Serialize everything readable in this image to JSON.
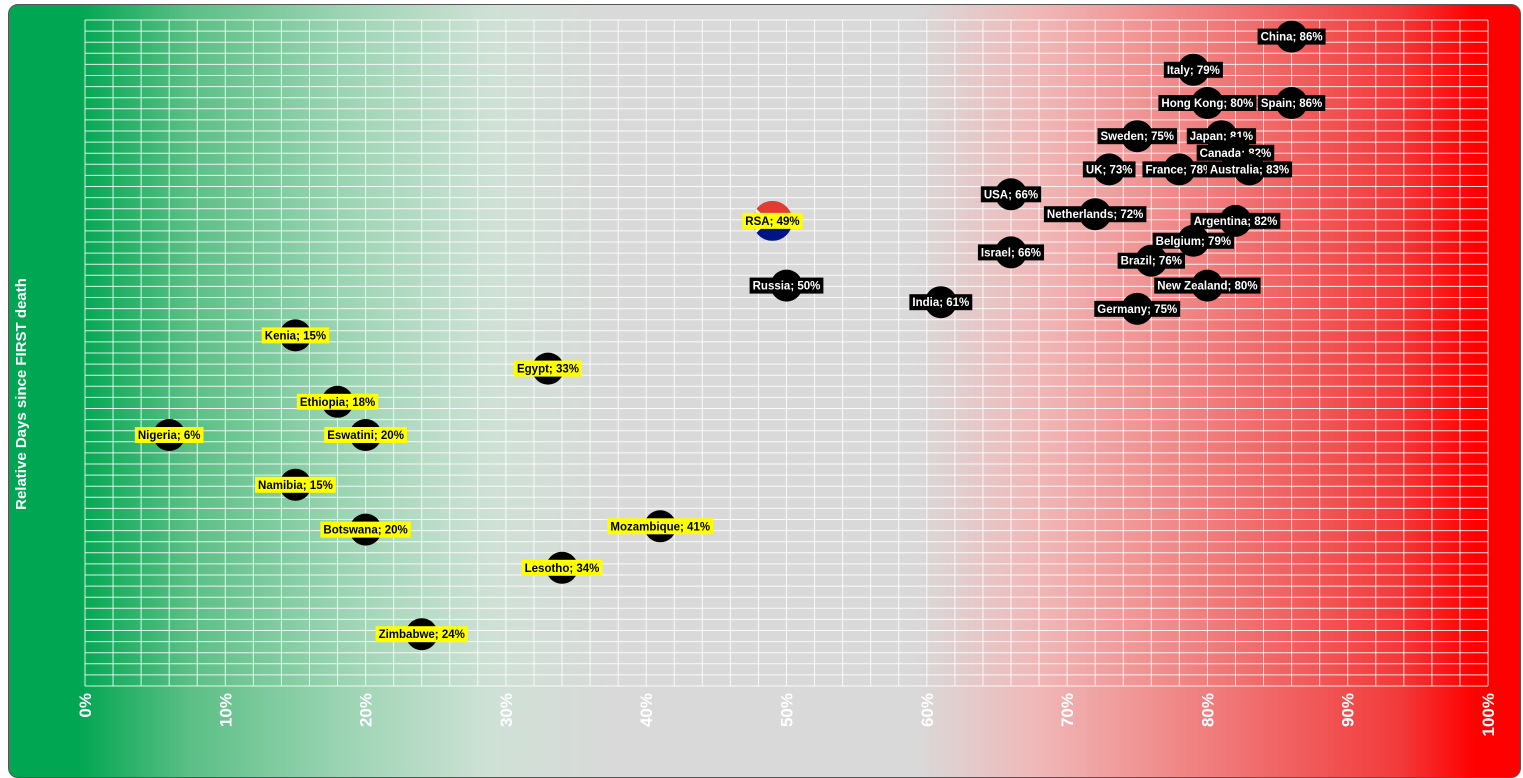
{
  "chart_data": {
    "type": "scatter",
    "title": "",
    "xlabel": "",
    "ylabel": "Relative Days since FIRST death",
    "xlim": [
      0,
      100
    ],
    "x_ticks": [
      "0%",
      "10%",
      "20%",
      "30%",
      "40%",
      "50%",
      "60%",
      "70%",
      "80%",
      "90%",
      "100%"
    ],
    "grid": true,
    "colors": {
      "left": "#00a651",
      "middle": "#d9d9d9",
      "right": "#ff0000",
      "marker": "#000000",
      "label_africa": "#ffff00",
      "label_other": "#000000"
    },
    "points": [
      {
        "label": "China; 86%",
        "x": 86,
        "rank": 1,
        "style": "dark"
      },
      {
        "label": "Italy; 79%",
        "x": 79,
        "rank": 3,
        "style": "dark"
      },
      {
        "label": "Hong Kong; 80%",
        "x": 80,
        "rank": 5,
        "style": "dark"
      },
      {
        "label": "Spain; 86%",
        "x": 86,
        "rank": 5,
        "style": "dark"
      },
      {
        "label": "Sweden; 75%",
        "x": 75,
        "rank": 7,
        "style": "dark"
      },
      {
        "label": "Japan; 81%",
        "x": 81,
        "rank": 7,
        "style": "dark"
      },
      {
        "label": "Canada; 82%",
        "x": 82,
        "rank": 8,
        "style": "dark"
      },
      {
        "label": "UK; 73%",
        "x": 73,
        "rank": 9,
        "style": "dark"
      },
      {
        "label": "France; 78%",
        "x": 78,
        "rank": 9,
        "style": "dark"
      },
      {
        "label": "Australia; 83%",
        "x": 83,
        "rank": 9,
        "style": "dark"
      },
      {
        "label": "USA; 66%",
        "x": 66,
        "rank": 10.5,
        "style": "dark"
      },
      {
        "label": "Netherlands; 72%",
        "x": 72,
        "rank": 11.7,
        "style": "dark"
      },
      {
        "label": "RSA; 49%",
        "x": 49,
        "rank": 12.1,
        "style": "flag"
      },
      {
        "label": "Argentina; 82%",
        "x": 82,
        "rank": 12.1,
        "style": "dark"
      },
      {
        "label": "Belgium; 79%",
        "x": 79,
        "rank": 13.3,
        "style": "dark"
      },
      {
        "label": "Israel; 66%",
        "x": 66,
        "rank": 14,
        "style": "dark"
      },
      {
        "label": "Brazil; 76%",
        "x": 76,
        "rank": 14.5,
        "style": "dark"
      },
      {
        "label": "Russia; 50%",
        "x": 50,
        "rank": 16,
        "style": "dark"
      },
      {
        "label": "New Zealand; 80%",
        "x": 80,
        "rank": 16,
        "style": "dark"
      },
      {
        "label": "India; 61%",
        "x": 61,
        "rank": 17,
        "style": "dark"
      },
      {
        "label": "Germany; 75%",
        "x": 75,
        "rank": 17.4,
        "style": "dark"
      },
      {
        "label": "Kenia; 15%",
        "x": 15,
        "rank": 19,
        "style": "africa"
      },
      {
        "label": "Egypt; 33%",
        "x": 33,
        "rank": 21,
        "style": "africa"
      },
      {
        "label": "Ethiopia; 18%",
        "x": 18,
        "rank": 23,
        "style": "africa"
      },
      {
        "label": "Nigeria; 6%",
        "x": 6,
        "rank": 25,
        "style": "africa"
      },
      {
        "label": "Eswatini; 20%",
        "x": 20,
        "rank": 25,
        "style": "africa"
      },
      {
        "label": "Namibia; 15%",
        "x": 15,
        "rank": 28,
        "style": "africa"
      },
      {
        "label": "Mozambique; 41%",
        "x": 41,
        "rank": 30.5,
        "style": "africa"
      },
      {
        "label": "Botswana; 20%",
        "x": 20,
        "rank": 30.7,
        "style": "africa"
      },
      {
        "label": "Lesotho; 34%",
        "x": 34,
        "rank": 33,
        "style": "africa"
      },
      {
        "label": "Zimbabwe; 24%",
        "x": 24,
        "rank": 37,
        "style": "africa"
      }
    ]
  }
}
